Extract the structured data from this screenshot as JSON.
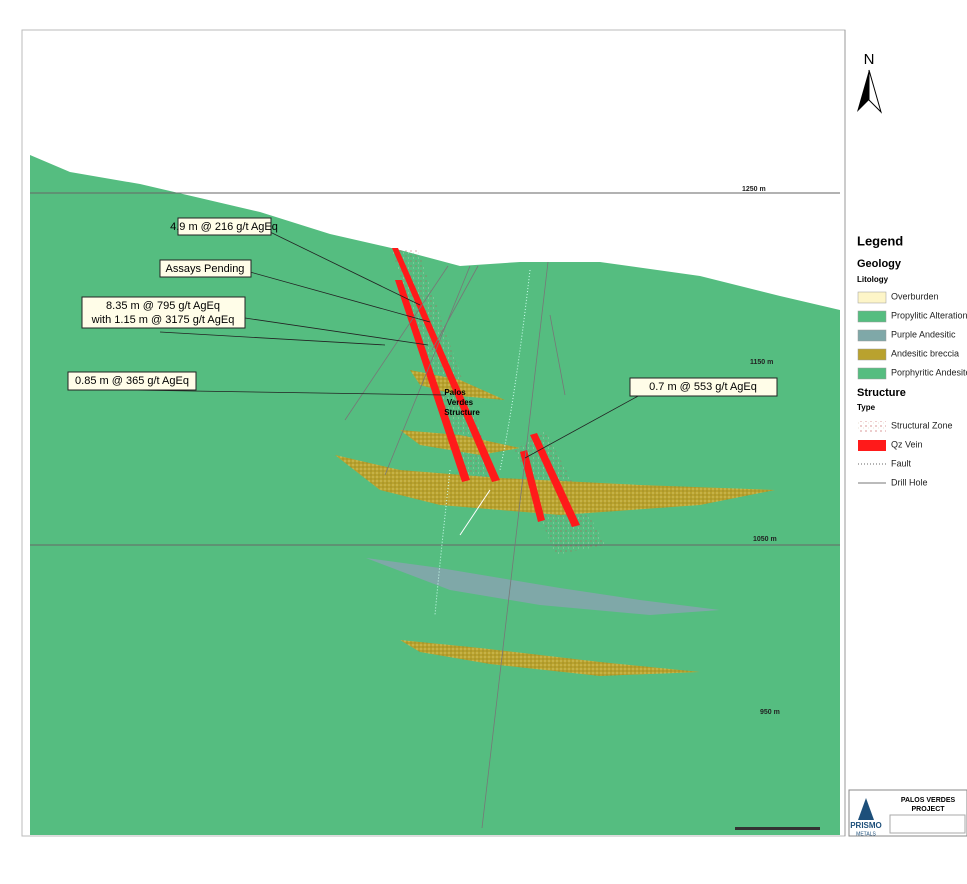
{
  "north_arrow": {
    "label": "N"
  },
  "elevations": [
    "1250 m",
    "1150 m",
    "1050 m",
    "950 m"
  ],
  "callouts": {
    "c1": "4.9 m @ 216 g/t AgEq",
    "c2": "Assays Pending",
    "c3_line1": "8.35 m @ 795 g/t AgEq",
    "c3_line2": "with 1.15 m @ 3175 g/t AgEq",
    "c4": "0.85 m @ 365 g/t AgEq",
    "c5": "0.7 m @ 553 g/t AgEq"
  },
  "structure_label": [
    "Palos",
    "Verdes",
    "Structure"
  ],
  "legend": {
    "title": "Legend",
    "geology": "Geology",
    "litology": "Litology",
    "litology_items": [
      "Overburden",
      "Propylitic Alteration",
      "Purple Andesitic",
      "Andesitic breccia",
      "Porphyritic Andesite"
    ],
    "structure": "Structure",
    "type": "Type",
    "structure_items": [
      "Structural Zone",
      "Qz Vein",
      "Fault",
      "Drill Hole"
    ]
  },
  "title_block": {
    "company": "PRISMO",
    "company_sub": "METALS",
    "project_line1": "PALOS VERDES",
    "project_line2": "PROJECT"
  }
}
